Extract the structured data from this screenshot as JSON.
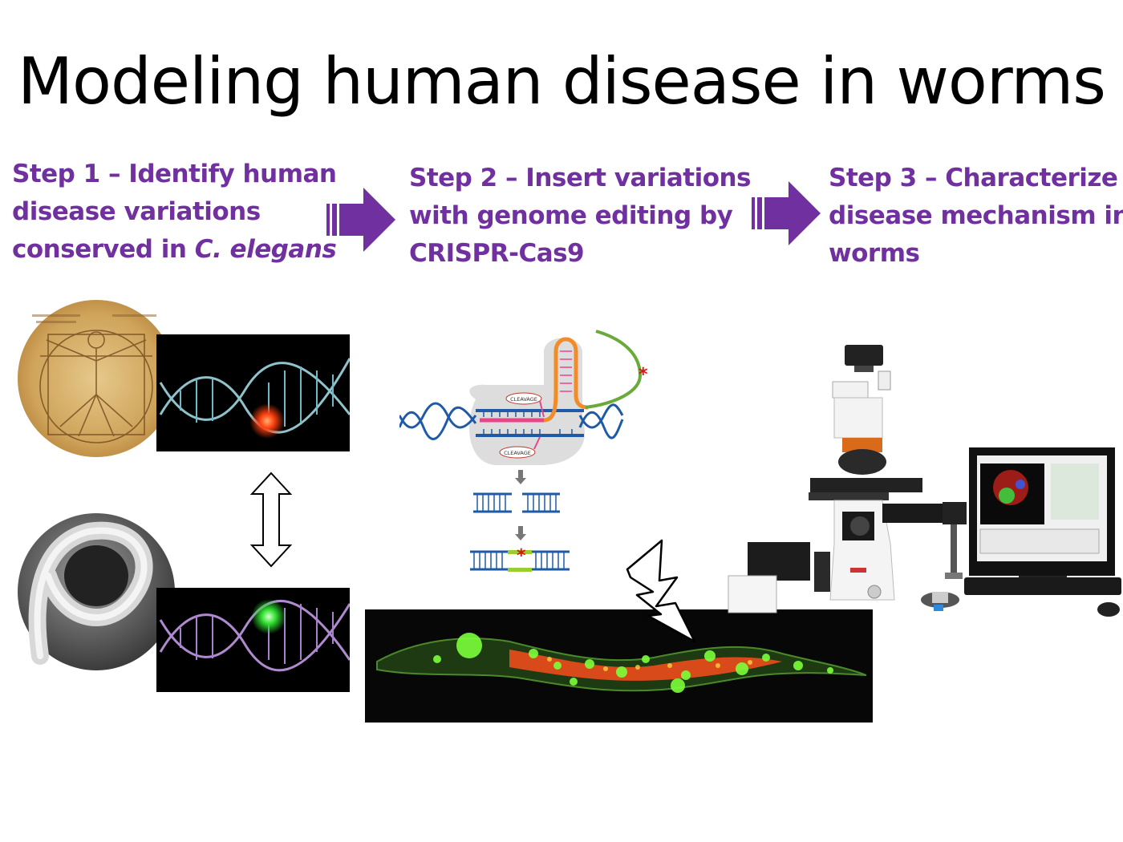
{
  "slide": {
    "title": "Modeling human disease in worms"
  },
  "steps": [
    {
      "line1": "Step 1 – Identify human",
      "line2": "disease variations",
      "line3_prefix": "conserved in ",
      "line3_italic": "C. elegans"
    },
    {
      "line1": "Step 2 – Insert variations",
      "line2": "with genome editing  by",
      "line3": "CRISPR-Cas9"
    },
    {
      "line1": "Step 3 – Characterize",
      "line2": "disease mechanism in",
      "line3": "worms"
    }
  ],
  "diagram": {
    "cleavage_label": "CLEAVAGE",
    "colors": {
      "step_text": "#7030a0",
      "arrow": "#7030a0",
      "dna_blue": "#1f5aa6",
      "guide_orange": "#f28c28",
      "guide_pink": "#e8458b",
      "donor_green": "#6aaa3a",
      "mutation_red": "#e01010"
    }
  }
}
